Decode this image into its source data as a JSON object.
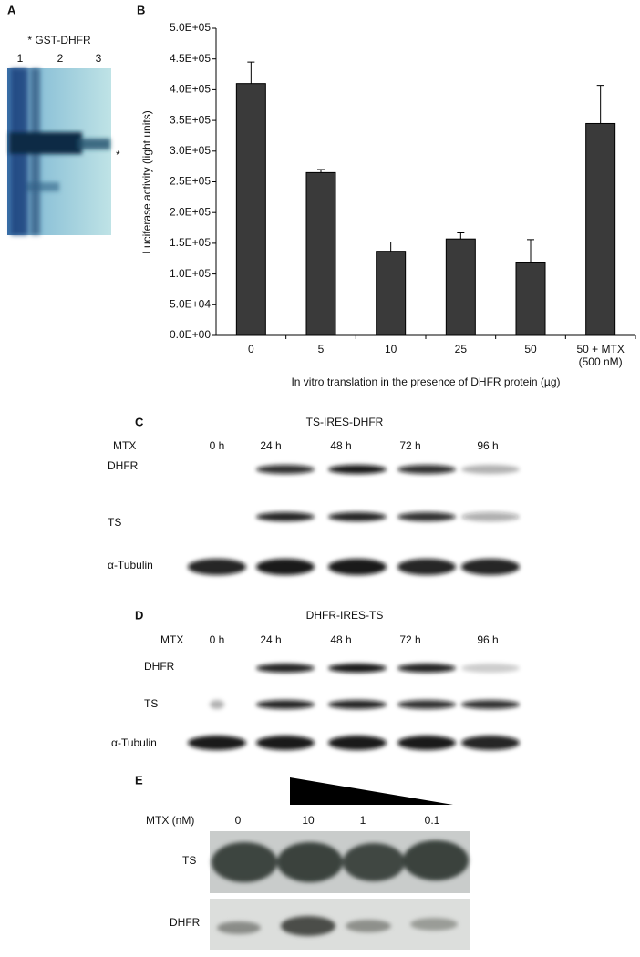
{
  "panel_a": {
    "label": "A",
    "title": "* GST-DHFR",
    "lanes": [
      "1",
      "2",
      "3"
    ],
    "marker": "*"
  },
  "chart_data": {
    "type": "bar",
    "panel_label": "B",
    "categories": [
      "0",
      "5",
      "10",
      "25",
      "50",
      "50 + MTX (500 nM)"
    ],
    "values": [
      410000,
      265000,
      137000,
      157000,
      118000,
      345000
    ],
    "errors": [
      35000,
      5000,
      15000,
      10000,
      38000,
      62000
    ],
    "color": "#3a3a3a",
    "y_label": "Luciferase activity (light units)",
    "x_label": "In vitro translation in the presence of DHFR protein (µg)",
    "ylim": [
      0,
      500000
    ],
    "yticks": [
      {
        "value": 0,
        "label": "0.0E+00"
      },
      {
        "value": 50000,
        "label": "5.0E+04"
      },
      {
        "value": 100000,
        "label": "1.0E+05"
      },
      {
        "value": 150000,
        "label": "1.5E+05"
      },
      {
        "value": 200000,
        "label": "2.0E+05"
      },
      {
        "value": 250000,
        "label": "2.5E+05"
      },
      {
        "value": 300000,
        "label": "3.0E+05"
      },
      {
        "value": 350000,
        "label": "3.5E+05"
      },
      {
        "value": 400000,
        "label": "4.0E+05"
      },
      {
        "value": 450000,
        "label": "4.5E+05"
      },
      {
        "value": 500000,
        "label": "5.0E+05"
      }
    ],
    "grid": false
  },
  "panel_c": {
    "label": "C",
    "title": "TS-IRES-DHFR",
    "row_header": "MTX",
    "times": [
      "0 h",
      "24 h",
      "48 h",
      "72 h",
      "96 h"
    ],
    "rows": [
      "DHFR",
      "TS",
      "α-Tubulin"
    ]
  },
  "panel_d": {
    "label": "D",
    "title": "DHFR-IRES-TS",
    "row_header": "MTX",
    "times": [
      "0 h",
      "24 h",
      "48 h",
      "72 h",
      "96 h"
    ],
    "rows": [
      "DHFR",
      "TS",
      "α-Tubulin"
    ]
  },
  "panel_e": {
    "label": "E",
    "row_header": "MTX (nM)",
    "doses": [
      "0",
      "10",
      "1",
      "0.1"
    ],
    "rows": [
      "TS",
      "DHFR"
    ]
  }
}
